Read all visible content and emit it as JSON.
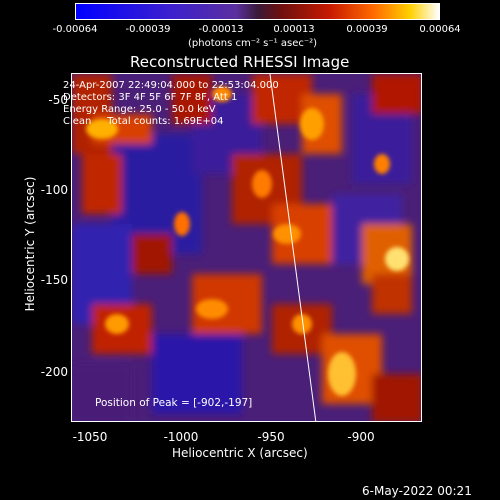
{
  "colorbar": {
    "ticks": [
      "-0.00064",
      "-0.00039",
      "-0.00013",
      "0.00013",
      "0.00039",
      "0.00064"
    ],
    "units": "(photons cm⁻² s⁻¹ asec⁻²)"
  },
  "title": "Reconstructed RHESSI Image",
  "info": {
    "line1": "24-Apr-2007 22:49:04.000 to 22:53:04.000",
    "line2": "Detectors: 3F 4F 5F 6F 7F 8F, Att 1",
    "line3": "Energy Range: 25.0 - 50.0 keV",
    "line4": "Clean     Total counts: 1.69E+04"
  },
  "peak": "Position of Peak = [-902,-197]",
  "axes": {
    "xlabel": "Heliocentric X (arcsec)",
    "ylabel": "Heliocentric Y (arcsec)",
    "xticks": [
      "-1050",
      "-1000",
      "-950",
      "-900"
    ],
    "yticks": [
      "-50",
      "-100",
      "-150",
      "-200"
    ]
  },
  "timestamp": "6-May-2022 00:21"
}
